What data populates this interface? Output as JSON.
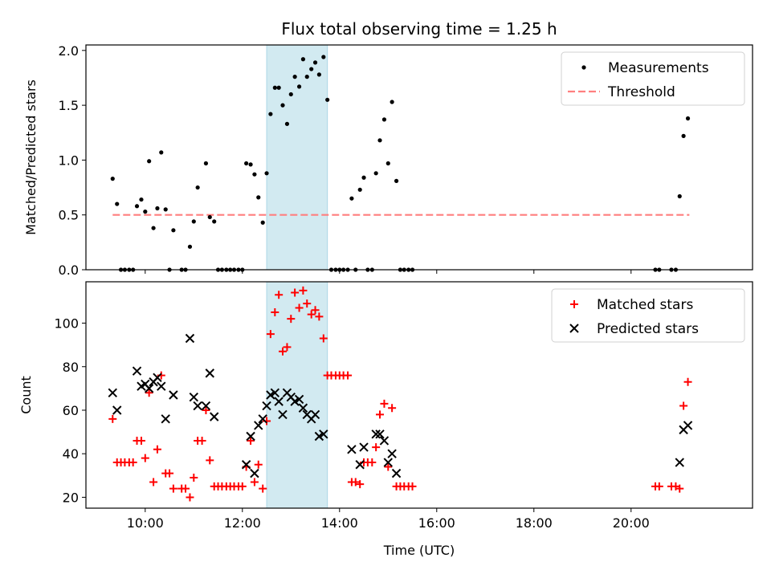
{
  "chart_data": [
    {
      "type": "scatter",
      "title": "Flux total observing time = 1.25 h",
      "xlabel": "",
      "ylabel": "Matched/Predicted stars",
      "ylim": [
        0,
        2.05
      ],
      "yticks": [
        "0.0",
        "0.5",
        "1.0",
        "1.5",
        "2.0"
      ],
      "ytick_values": [
        0,
        0.5,
        1.0,
        1.5,
        2.0
      ],
      "xlim": [
        8.78,
        22.5
      ],
      "xticks": [
        "10:00",
        "12:00",
        "14:00",
        "16:00",
        "18:00",
        "20:00"
      ],
      "xtick_values": [
        10,
        12,
        14,
        16,
        18,
        20
      ],
      "x_tick_labels_visible": false,
      "span": {
        "x0": 12.5,
        "x1": 13.75,
        "color": "#add8e6"
      },
      "legend": {
        "placement": "top-right",
        "entries": [
          "Measurements",
          "Threshold"
        ]
      },
      "threshold": {
        "name": "Threshold",
        "y": 0.5,
        "x": [
          9.33,
          21.2
        ],
        "color": "#ff7f7f"
      },
      "series": [
        {
          "name": "Measurements",
          "color": "#000000",
          "points": [
            [
              9.33,
              0.83
            ],
            [
              9.42,
              0.6
            ],
            [
              9.5,
              0
            ],
            [
              9.58,
              0
            ],
            [
              9.67,
              0
            ],
            [
              9.75,
              0
            ],
            [
              9.83,
              0.58
            ],
            [
              9.92,
              0.64
            ],
            [
              10.0,
              0.53
            ],
            [
              10.08,
              0.99
            ],
            [
              10.17,
              0.38
            ],
            [
              10.25,
              0.56
            ],
            [
              10.33,
              1.07
            ],
            [
              10.42,
              0.55
            ],
            [
              10.5,
              0
            ],
            [
              10.58,
              0.36
            ],
            [
              10.75,
              0
            ],
            [
              10.83,
              0
            ],
            [
              10.92,
              0.21
            ],
            [
              11.0,
              0.44
            ],
            [
              11.08,
              0.75
            ],
            [
              11.25,
              0.97
            ],
            [
              11.33,
              0.48
            ],
            [
              11.42,
              0.44
            ],
            [
              11.5,
              0
            ],
            [
              11.58,
              0
            ],
            [
              11.67,
              0
            ],
            [
              11.75,
              0
            ],
            [
              11.83,
              0
            ],
            [
              11.92,
              0
            ],
            [
              12.0,
              0
            ],
            [
              12.08,
              0.97
            ],
            [
              12.17,
              0.96
            ],
            [
              12.25,
              0.87
            ],
            [
              12.33,
              0.66
            ],
            [
              12.42,
              0.43
            ],
            [
              12.5,
              0.88
            ],
            [
              12.58,
              1.42
            ],
            [
              12.67,
              1.66
            ],
            [
              12.75,
              1.66
            ],
            [
              12.83,
              1.5
            ],
            [
              12.92,
              1.33
            ],
            [
              13.0,
              1.6
            ],
            [
              13.08,
              1.76
            ],
            [
              13.17,
              1.67
            ],
            [
              13.25,
              1.92
            ],
            [
              13.33,
              1.76
            ],
            [
              13.42,
              1.83
            ],
            [
              13.5,
              1.89
            ],
            [
              13.58,
              1.78
            ],
            [
              13.67,
              1.94
            ],
            [
              13.75,
              1.55
            ],
            [
              13.83,
              0
            ],
            [
              13.92,
              0
            ],
            [
              14.0,
              0
            ],
            [
              14.08,
              0
            ],
            [
              14.17,
              0
            ],
            [
              14.25,
              0.65
            ],
            [
              14.33,
              0
            ],
            [
              14.42,
              0.73
            ],
            [
              14.5,
              0.84
            ],
            [
              14.58,
              0
            ],
            [
              14.67,
              0
            ],
            [
              14.75,
              0.88
            ],
            [
              14.83,
              1.18
            ],
            [
              14.92,
              1.37
            ],
            [
              15.0,
              0.97
            ],
            [
              15.08,
              1.53
            ],
            [
              15.17,
              0.81
            ],
            [
              15.25,
              0
            ],
            [
              15.33,
              0
            ],
            [
              15.42,
              0
            ],
            [
              15.5,
              0
            ],
            [
              20.5,
              0
            ],
            [
              20.58,
              0
            ],
            [
              20.83,
              0
            ],
            [
              20.92,
              0
            ],
            [
              21.0,
              0.67
            ],
            [
              21.08,
              1.22
            ],
            [
              21.17,
              1.38
            ]
          ]
        }
      ]
    },
    {
      "type": "scatter",
      "title": "",
      "xlabel": "Time (UTC)",
      "ylabel": "Count",
      "ylim": [
        15,
        119
      ],
      "yticks": [
        "20",
        "40",
        "60",
        "80",
        "100"
      ],
      "ytick_values": [
        20,
        40,
        60,
        80,
        100
      ],
      "xlim": [
        8.78,
        22.5
      ],
      "xticks": [
        "10:00",
        "12:00",
        "14:00",
        "16:00",
        "18:00",
        "20:00"
      ],
      "xtick_values": [
        10,
        12,
        14,
        16,
        18,
        20
      ],
      "span": {
        "x0": 12.5,
        "x1": 13.75,
        "color": "#add8e6"
      },
      "legend": {
        "placement": "top-right",
        "entries": [
          "Matched stars",
          "Predicted stars"
        ]
      },
      "series": [
        {
          "name": "Matched stars",
          "marker": "+",
          "color": "#ff0000",
          "points": [
            [
              9.33,
              56
            ],
            [
              9.42,
              36
            ],
            [
              9.5,
              36
            ],
            [
              9.58,
              36
            ],
            [
              9.67,
              36
            ],
            [
              9.75,
              36
            ],
            [
              9.83,
              46
            ],
            [
              9.92,
              46
            ],
            [
              10.0,
              38
            ],
            [
              10.08,
              68
            ],
            [
              10.17,
              27
            ],
            [
              10.25,
              42
            ],
            [
              10.33,
              76
            ],
            [
              10.42,
              31
            ],
            [
              10.5,
              31
            ],
            [
              10.58,
              24
            ],
            [
              10.75,
              24
            ],
            [
              10.83,
              24
            ],
            [
              10.92,
              20
            ],
            [
              11.0,
              29
            ],
            [
              11.08,
              46
            ],
            [
              11.17,
              46
            ],
            [
              11.25,
              60
            ],
            [
              11.33,
              37
            ],
            [
              11.42,
              25
            ],
            [
              11.5,
              25
            ],
            [
              11.58,
              25
            ],
            [
              11.67,
              25
            ],
            [
              11.75,
              25
            ],
            [
              11.83,
              25
            ],
            [
              11.92,
              25
            ],
            [
              12.0,
              25
            ],
            [
              12.08,
              34
            ],
            [
              12.17,
              46
            ],
            [
              12.25,
              27
            ],
            [
              12.33,
              35
            ],
            [
              12.42,
              24
            ],
            [
              12.5,
              55
            ],
            [
              12.58,
              95
            ],
            [
              12.67,
              105
            ],
            [
              12.75,
              113
            ],
            [
              12.83,
              87
            ],
            [
              12.92,
              89
            ],
            [
              13.0,
              102
            ],
            [
              13.08,
              114
            ],
            [
              13.17,
              107
            ],
            [
              13.25,
              115
            ],
            [
              13.33,
              109
            ],
            [
              13.42,
              104
            ],
            [
              13.5,
              106
            ],
            [
              13.58,
              103
            ],
            [
              13.67,
              93
            ],
            [
              13.75,
              76
            ],
            [
              13.83,
              76
            ],
            [
              13.92,
              76
            ],
            [
              14.0,
              76
            ],
            [
              14.08,
              76
            ],
            [
              14.17,
              76
            ],
            [
              14.25,
              27
            ],
            [
              14.33,
              27
            ],
            [
              14.42,
              26
            ],
            [
              14.5,
              36
            ],
            [
              14.58,
              36
            ],
            [
              14.67,
              36
            ],
            [
              14.75,
              43
            ],
            [
              14.83,
              58
            ],
            [
              14.92,
              63
            ],
            [
              15.0,
              34
            ],
            [
              15.08,
              61
            ],
            [
              15.17,
              25
            ],
            [
              15.25,
              25
            ],
            [
              15.33,
              25
            ],
            [
              15.42,
              25
            ],
            [
              15.5,
              25
            ],
            [
              20.5,
              25
            ],
            [
              20.58,
              25
            ],
            [
              20.83,
              25
            ],
            [
              20.92,
              25
            ],
            [
              21.0,
              24
            ],
            [
              21.08,
              62
            ],
            [
              21.17,
              73
            ]
          ]
        },
        {
          "name": "Predicted stars",
          "marker": "x",
          "color": "#000000",
          "points": [
            [
              9.33,
              68
            ],
            [
              9.42,
              60
            ],
            [
              9.83,
              78
            ],
            [
              9.92,
              71
            ],
            [
              10.0,
              72
            ],
            [
              10.08,
              70
            ],
            [
              10.17,
              73
            ],
            [
              10.25,
              75
            ],
            [
              10.33,
              71
            ],
            [
              10.42,
              56
            ],
            [
              10.58,
              67
            ],
            [
              10.92,
              93
            ],
            [
              11.0,
              66
            ],
            [
              11.08,
              62
            ],
            [
              11.25,
              62
            ],
            [
              11.33,
              77
            ],
            [
              11.42,
              57
            ],
            [
              12.08,
              35
            ],
            [
              12.17,
              48
            ],
            [
              12.25,
              31
            ],
            [
              12.33,
              53
            ],
            [
              12.42,
              56
            ],
            [
              12.5,
              62
            ],
            [
              12.58,
              67
            ],
            [
              12.67,
              68
            ],
            [
              12.75,
              64
            ],
            [
              12.83,
              58
            ],
            [
              12.92,
              68
            ],
            [
              13.0,
              66
            ],
            [
              13.08,
              64
            ],
            [
              13.17,
              65
            ],
            [
              13.25,
              61
            ],
            [
              13.33,
              58
            ],
            [
              13.42,
              56
            ],
            [
              13.5,
              58
            ],
            [
              13.58,
              48
            ],
            [
              13.67,
              49
            ],
            [
              14.25,
              42
            ],
            [
              14.42,
              35
            ],
            [
              14.5,
              43
            ],
            [
              14.75,
              49
            ],
            [
              14.83,
              49
            ],
            [
              14.92,
              46
            ],
            [
              15.0,
              36
            ],
            [
              15.08,
              40
            ],
            [
              15.17,
              31
            ],
            [
              21.0,
              36
            ],
            [
              21.08,
              51
            ],
            [
              21.17,
              53
            ]
          ]
        }
      ]
    }
  ]
}
